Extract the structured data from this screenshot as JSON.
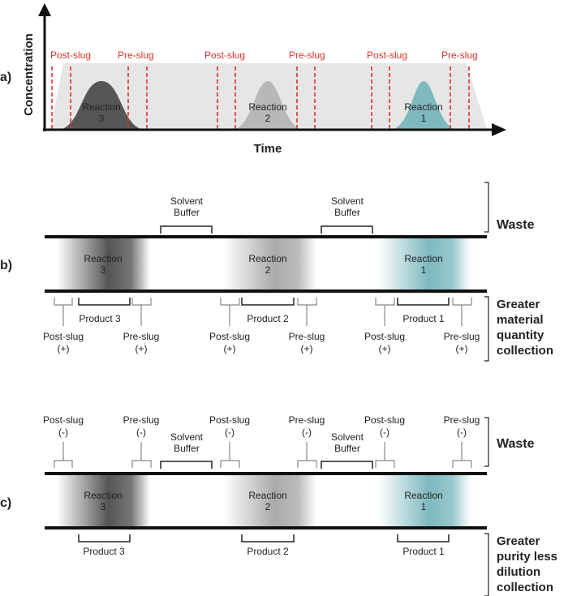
{
  "panels": {
    "a": "a)",
    "b": "b)",
    "c": "c)"
  },
  "axes": {
    "ylabel": "Concentration",
    "xlabel": "Time"
  },
  "reactions": [
    {
      "name": "Reaction",
      "number": "3",
      "color": "#565656"
    },
    {
      "name": "Reaction",
      "number": "2",
      "color": "#b8b8b8"
    },
    {
      "name": "Reaction",
      "number": "1",
      "color": "#7fb9c0"
    }
  ],
  "slug_labels": {
    "post": "Post-slug",
    "pre": "Pre-slug",
    "plus": "(+)",
    "minus": "(-)"
  },
  "solvent_buffer": {
    "line1": "Solvent",
    "line2": "Buffer"
  },
  "products": [
    "Product 3",
    "Product 2",
    "Product 1"
  ],
  "right_labels": {
    "waste": "Waste",
    "greater_material": [
      "Greater",
      "material",
      "quantity",
      "collection"
    ],
    "greater_purity": [
      "Greater",
      "purity less",
      "dilution",
      "collection"
    ]
  },
  "colors": {
    "dashed_line": "#d9342b",
    "background_band": "#e6e6e6",
    "tube": "#111111"
  }
}
